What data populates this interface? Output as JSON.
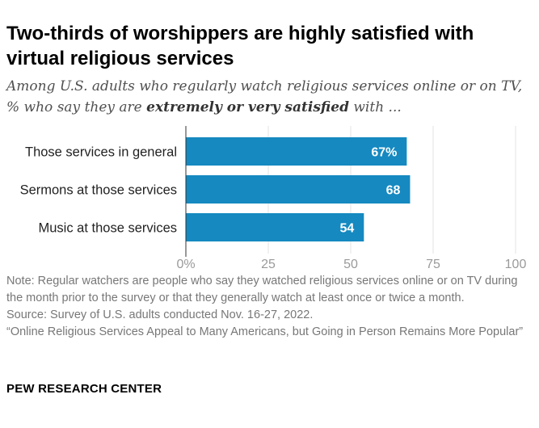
{
  "header": {
    "title": "Two-thirds of worshippers are highly satisfied with virtual religious services",
    "subtitle_prefix": "Among U.S. adults who regularly watch religious services online or on TV, % who say they are ",
    "subtitle_bold": "extremely or very satisfied",
    "subtitle_suffix": " with ..."
  },
  "chart_data": {
    "type": "bar",
    "orientation": "horizontal",
    "categories": [
      "Those services in general",
      "Sermons at those services",
      "Music at those services"
    ],
    "values": [
      67,
      68,
      54
    ],
    "data_labels": [
      "67%",
      "68",
      "54"
    ],
    "xlim": [
      0,
      100
    ],
    "x_ticks": [
      0,
      25,
      50,
      75,
      100
    ],
    "x_tick_labels": [
      "0%",
      "25",
      "50",
      "75",
      "100"
    ],
    "grid": true,
    "bar_color": "#1589c0",
    "label_color": "#ffffff",
    "grid_color": "#e3e3e3"
  },
  "footer": {
    "note": "Note: Regular watchers are people who say they watched religious services online or on TV during the month prior to the survey or that they generally watch at least once or twice a month.",
    "source": "Source: Survey of U.S. adults conducted Nov. 16-27, 2022.",
    "report": "“Online Religious Services Appeal to Many Americans, but Going in Person Remains More Popular”",
    "brand": "PEW RESEARCH CENTER"
  }
}
